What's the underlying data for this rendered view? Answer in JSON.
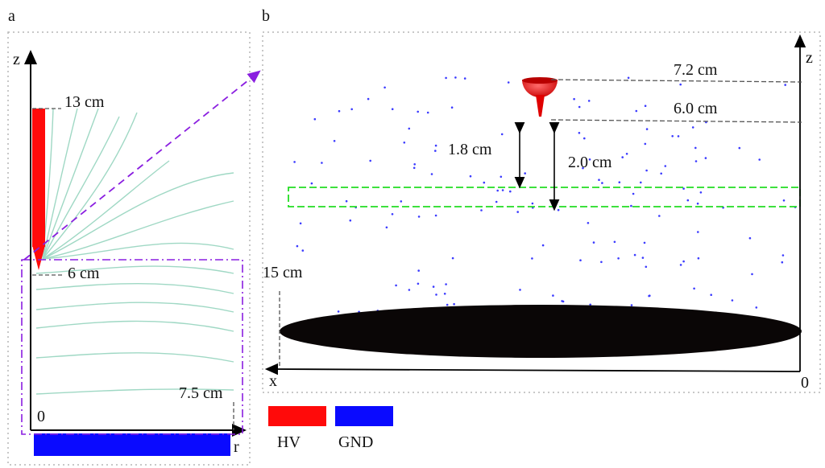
{
  "panel_a": {
    "label": "a",
    "axis_z": "z",
    "axis_r": "r",
    "origin": "0",
    "dim_top": "13 cm",
    "dim_tip": "6 cm",
    "dim_radius": "7.5 cm"
  },
  "panel_b": {
    "label": "b",
    "axis_z": "z",
    "axis_x": "x",
    "origin_right": "0",
    "dim_top": "7.2 cm",
    "dim_tip": "6.0 cm",
    "dim_gap1": "1.8 cm",
    "dim_gap2": "2.0 cm",
    "dim_height": "15 cm"
  },
  "legend": {
    "items": [
      {
        "label": "HV",
        "color": "#ff0a0a"
      },
      {
        "label": "GND",
        "color": "#0a0aff"
      }
    ]
  },
  "colors": {
    "field_lines": "#9fd8c4",
    "dashed_box": "#8a1ee0",
    "measure_band": "#22dd22",
    "particles": "#3b3bff",
    "plate": "#0a0606"
  }
}
